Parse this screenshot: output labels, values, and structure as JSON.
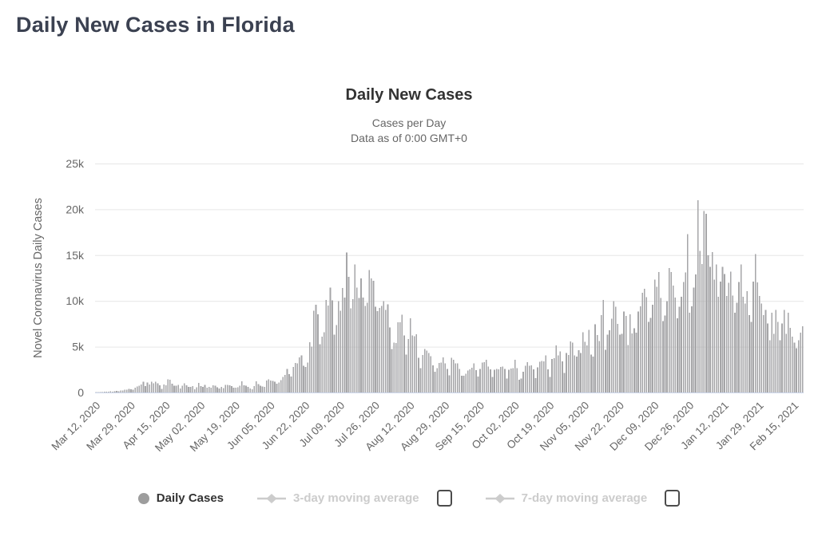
{
  "page": {
    "title": "Daily New Cases in Florida"
  },
  "chart": {
    "title": "Daily New Cases",
    "subtitle1": "Cases per Day",
    "subtitle2": "Data as of 0:00 GMT+0"
  },
  "legend": {
    "items": [
      {
        "label": "Daily Cases",
        "marker": "circle",
        "marker_color": "#9d9d9d",
        "label_color": "#333333",
        "checkbox": false,
        "checked": false,
        "active": true
      },
      {
        "label": "3-day moving average",
        "marker": "line-diamond",
        "marker_color": "#cccccc",
        "label_color": "#cccccc",
        "checkbox": true,
        "checked": false,
        "active": false
      },
      {
        "label": "7-day moving average",
        "marker": "line-diamond",
        "marker_color": "#cccccc",
        "label_color": "#cccccc",
        "checkbox": true,
        "checked": false,
        "active": false
      }
    ]
  },
  "chart_data": {
    "type": "bar",
    "title": "Daily New Cases",
    "subtitle": [
      "Cases per Day",
      "Data as of 0:00 GMT+0"
    ],
    "xlabel": "",
    "ylabel": "Novel Coronavirus Daily Cases",
    "ylim": [
      0,
      25000
    ],
    "grid": true,
    "legend_position": "bottom",
    "bar_color": "#a6a6a8",
    "grid_color": "#e6e6e6",
    "axis_line_color": "#ccd6eb",
    "tick_label_color": "#666666",
    "y_tick_labels": [
      "0",
      "5k",
      "10k",
      "15k",
      "20k",
      "25k"
    ],
    "y_tick_values": [
      0,
      5000,
      10000,
      15000,
      20000,
      25000
    ],
    "x_start_date": "2020-03-12",
    "x_end_date": "2021-02-19",
    "x_tick_interval_days": 17,
    "x_tick_labels": [
      "Mar 12, 2020",
      "Mar 29, 2020",
      "Apr 15, 2020",
      "May 02, 2020",
      "May 19, 2020",
      "Jun 05, 2020",
      "Jun 22, 2020",
      "Jul 09, 2020",
      "Jul 26, 2020",
      "Aug 12, 2020",
      "Aug 29, 2020",
      "Sep 15, 2020",
      "Oct 02, 2020",
      "Oct 19, 2020",
      "Nov 05, 2020",
      "Nov 22, 2020",
      "Dec 09, 2020",
      "Dec 26, 2020",
      "Jan 12, 2021",
      "Jan 29, 2021",
      "Feb 15, 2021"
    ],
    "series": [
      {
        "name": "Daily Cases",
        "type": "bar",
        "visible": true,
        "values": [
          35,
          46,
          39,
          60,
          78,
          66,
          86,
          112,
          105,
          134,
          159,
          126,
          219,
          222,
          287,
          317,
          385,
          334,
          296,
          504,
          661,
          736,
          869,
          1191,
          694,
          1106,
          880,
          1181,
          1022,
          1174,
          1006,
          779,
          403,
          852,
          776,
          1422,
          1413,
          978,
          754,
          740,
          840,
          440,
          733,
          1018,
          765,
          620,
          603,
          708,
          347,
          587,
          1038,
          714,
          615,
          819,
          542,
          617,
          507,
          802,
          751,
          577,
          416,
          612,
          479,
          815,
          828,
          777,
          704,
          502,
          527,
          552,
          752,
          1204,
          776,
          740,
          616,
          444,
          368,
          717,
          1212,
          927,
          738,
          667,
          617,
          1317,
          1419,
          1305,
          1270,
          1180,
          966,
          1096,
          1371,
          1698,
          1902,
          2581,
          2016,
          1758,
          2783,
          3207,
          3187,
          3822,
          4049,
          2926,
          2786,
          3286,
          5508,
          5004,
          8942,
          9585,
          8530,
          5266,
          6093,
          6563,
          10109,
          9488,
          11445,
          10059,
          6336,
          7347,
          9989,
          8935,
          11433,
          10360,
          15300,
          12624,
          9194,
          10181,
          13965,
          11466,
          10328,
          12478,
          10347,
          9440,
          9785,
          13355,
          12444,
          12199,
          9344,
          8892,
          9230,
          9446,
          9956,
          9007,
          9642,
          7104,
          4752,
          5446,
          5409,
          7650,
          7686,
          8502,
          6229,
          4155,
          5831,
          8109,
          6236,
          6148,
          6352,
          3779,
          2678,
          4115,
          4757,
          4555,
          4311,
          3959,
          2974,
          2258,
          2673,
          3220,
          3269,
          3838,
          3197,
          2583,
          1885,
          3773,
          3571,
          3198,
          3190,
          2583,
          1838,
          1823,
          2056,
          2380,
          2541,
          2715,
          3190,
          2423,
          1736,
          2585,
          3255,
          3304,
          3573,
          2847,
          2521,
          1685,
          2470,
          2590,
          2541,
          2795,
          2847,
          2577,
          1533,
          2466,
          2628,
          2660,
          3573,
          2672,
          1415,
          1533,
          2251,
          2908,
          3306,
          2916,
          2958,
          2533,
          1564,
          2725,
          3356,
          3449,
          3393,
          4049,
          2539,
          1707,
          3662,
          3757,
          5157,
          4044,
          4471,
          3377,
          2145,
          4298,
          4115,
          5592,
          5458,
          4044,
          3924,
          4637,
          4332,
          6583,
          5551,
          5133,
          6820,
          4130,
          3930,
          7459,
          6257,
          5607,
          8430,
          10105,
          4663,
          6331,
          6815,
          8061,
          9970,
          9344,
          7490,
          6331,
          6422,
          8847,
          8376,
          5196,
          8555,
          6431,
          7013,
          6554,
          8847,
          9411,
          10870,
          11335,
          10431,
          7711,
          8135,
          9592,
          12338,
          11541,
          13148,
          10339,
          7805,
          8423,
          9992,
          13570,
          13165,
          11682,
          10382,
          8099,
          9382,
          10434,
          12063,
          13127,
          17272,
          8700,
          9391,
          11434,
          12871,
          21000,
          15445,
          14025,
          19816,
          19530,
          14981,
          13720,
          15335,
          12313,
          13990,
          10435,
          12111,
          13720,
          12938,
          10533,
          11999,
          13186,
          10603,
          8720,
          9816,
          12075,
          13990,
          10435,
          9716,
          11075,
          8435,
          7716,
          12111,
          15123,
          12038,
          10533,
          9716,
          8435,
          9000,
          7533,
          5717,
          8720,
          6396,
          9025,
          7716,
          5717,
          7533,
          9025,
          6396,
          8720,
          7040,
          6091,
          5455,
          4837,
          5717,
          6539,
          7249
        ]
      },
      {
        "name": "3-day moving average",
        "type": "line",
        "visible": false,
        "values": []
      },
      {
        "name": "7-day moving average",
        "type": "line",
        "visible": false,
        "values": []
      }
    ]
  }
}
